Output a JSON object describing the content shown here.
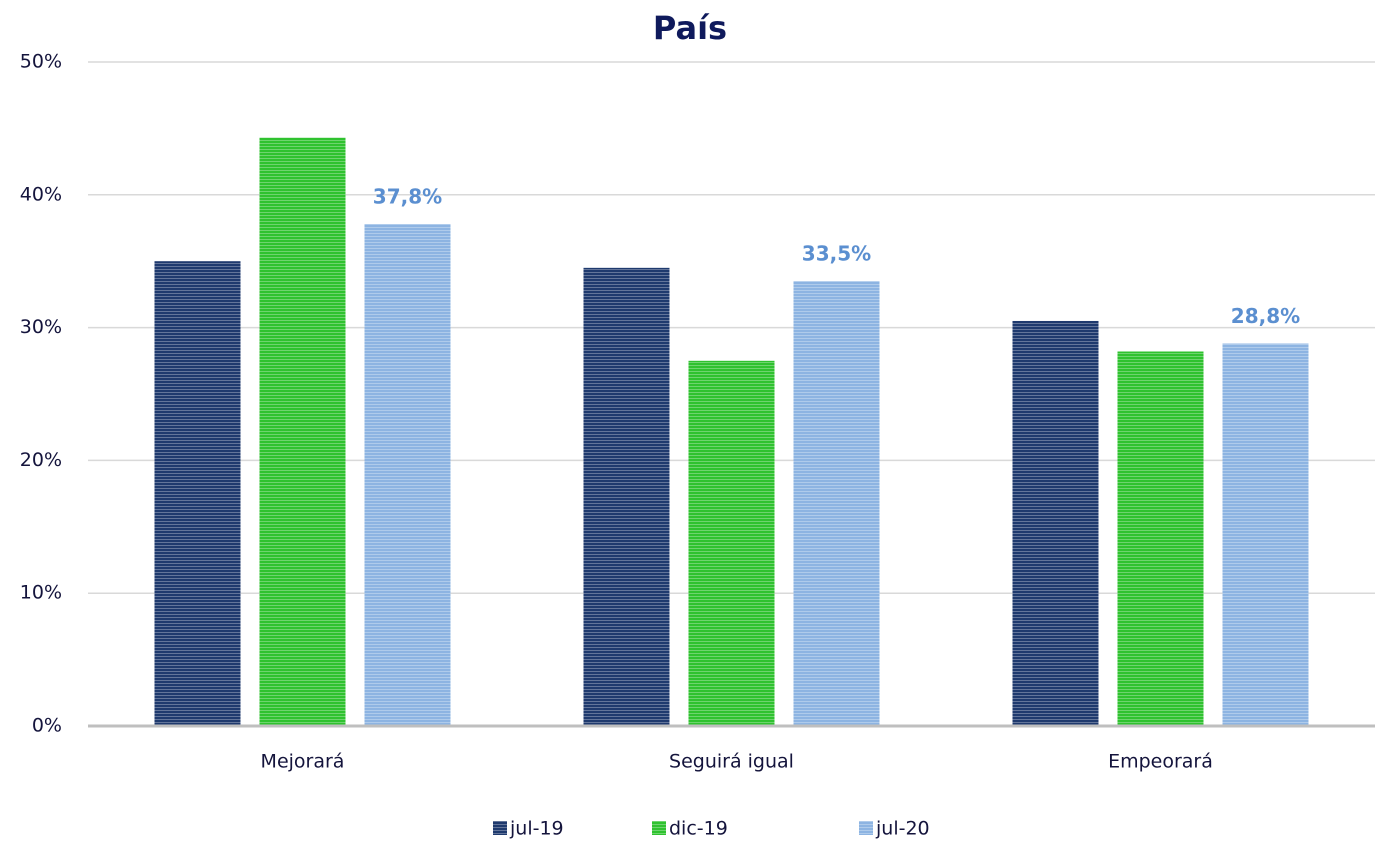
{
  "chart_data": {
    "type": "bar",
    "title": "País",
    "categories": [
      "Mejorará",
      "Seguirá igual",
      "Empeorará"
    ],
    "series": [
      {
        "name": "jul-19",
        "color": "#1f3a6e",
        "values": [
          35.0,
          34.5,
          30.5
        ]
      },
      {
        "name": "dic-19",
        "color": "#2fc22f",
        "values": [
          44.3,
          27.5,
          28.2
        ]
      },
      {
        "name": "jul-20",
        "color": "#8db4e2",
        "values": [
          37.8,
          33.5,
          28.8
        ],
        "value_labels": [
          "37,8%",
          "33,5%",
          "28,8%"
        ]
      }
    ],
    "ylim": [
      0,
      50
    ],
    "yticks": [
      {
        "value": 0,
        "label": "0%"
      },
      {
        "value": 10,
        "label": "10%"
      },
      {
        "value": 20,
        "label": "20%"
      },
      {
        "value": 30,
        "label": "30%"
      },
      {
        "value": 40,
        "label": "40%"
      },
      {
        "value": 50,
        "label": "50%"
      }
    ],
    "grid": true,
    "legend": "bottom"
  }
}
